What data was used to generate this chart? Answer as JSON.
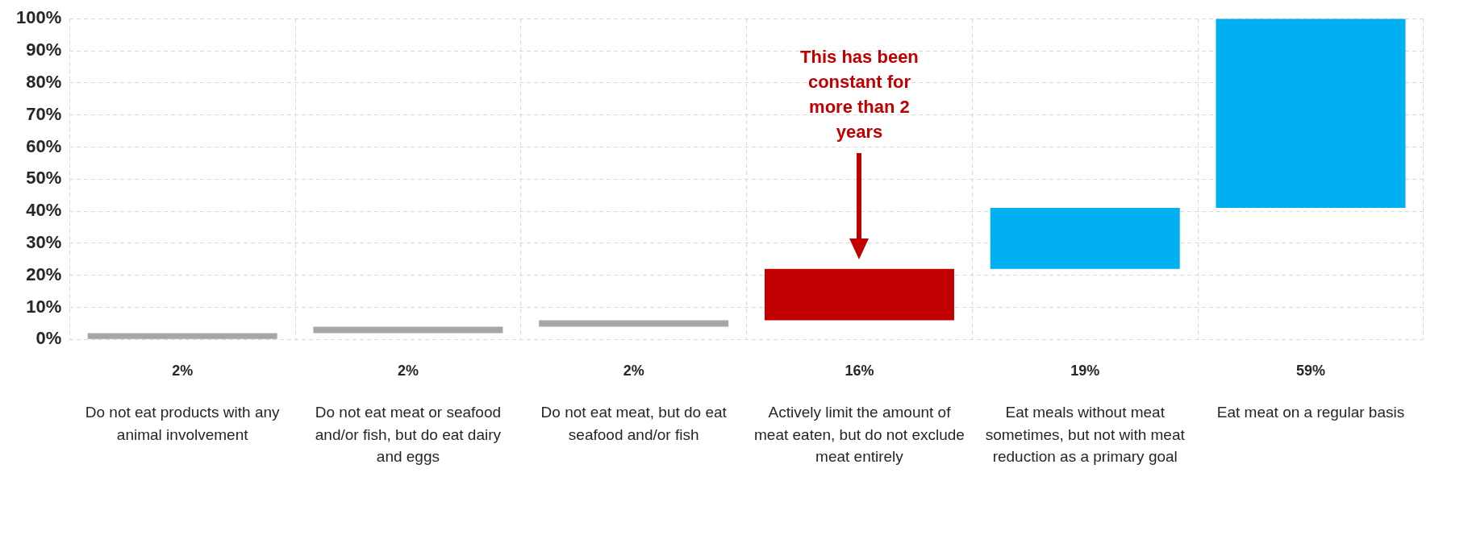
{
  "chart_data": {
    "type": "bar",
    "categories": [
      "Do not eat products with any animal involvement",
      "Do not eat meat or seafood and/or fish, but do eat dairy and eggs",
      "Do not eat meat, but do eat seafood and/or fish",
      "Actively limit the amount of meat eaten, but do not exclude meat entirely",
      "Eat meals without meat sometimes, but not with meat reduction as a primary goal",
      "Eat meat on a regular basis"
    ],
    "values": [
      2,
      2,
      2,
      16,
      19,
      59
    ],
    "base": [
      0,
      2,
      4,
      6,
      22,
      41
    ],
    "colors": [
      "#a6a6a6",
      "#a6a6a6",
      "#a6a6a6",
      "#c00000",
      "#00b0f0",
      "#00b0f0"
    ],
    "value_labels": [
      "2%",
      "2%",
      "2%",
      "16%",
      "19%",
      "59%"
    ],
    "ylim": [
      0,
      100
    ],
    "yticks": [
      {
        "value": 0,
        "label": "0%"
      },
      {
        "value": 10,
        "label": "10%"
      },
      {
        "value": 20,
        "label": "20%"
      },
      {
        "value": 30,
        "label": "30%"
      },
      {
        "value": 40,
        "label": "40%"
      },
      {
        "value": 50,
        "label": "50%"
      },
      {
        "value": 60,
        "label": "60%"
      },
      {
        "value": 70,
        "label": "70%"
      },
      {
        "value": 80,
        "label": "80%"
      },
      {
        "value": 90,
        "label": "90%"
      },
      {
        "value": 100,
        "label": "100%"
      }
    ],
    "grid": true,
    "annotations": [
      "This has been constant for more than 2 years"
    ]
  }
}
